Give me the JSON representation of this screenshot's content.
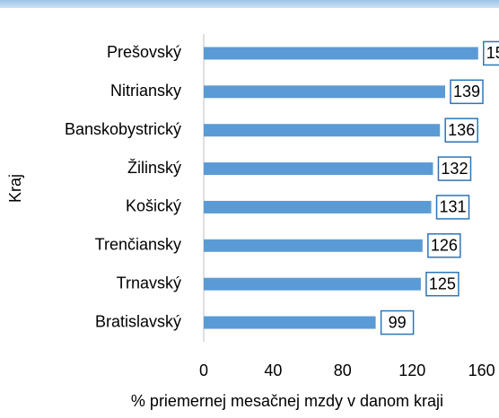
{
  "chart_data": {
    "type": "bar",
    "orientation": "horizontal",
    "xlabel": "% priemernej mesačnej mzdy v danom kraji",
    "ylabel": "Kraj",
    "categories": [
      "Prešovský",
      "Nitriansky",
      "Banskobystrický",
      "Žilinský",
      "Košický",
      "Trenčiansky",
      "Trnavský",
      "Bratislavský"
    ],
    "values": [
      158,
      139,
      136,
      132,
      131,
      126,
      125,
      99
    ],
    "color": "#5b9bd5",
    "label_border": "#2e75b6",
    "xlim": [
      0,
      170
    ],
    "xticks": [
      0,
      40,
      80,
      120,
      160
    ],
    "grid": false
  }
}
